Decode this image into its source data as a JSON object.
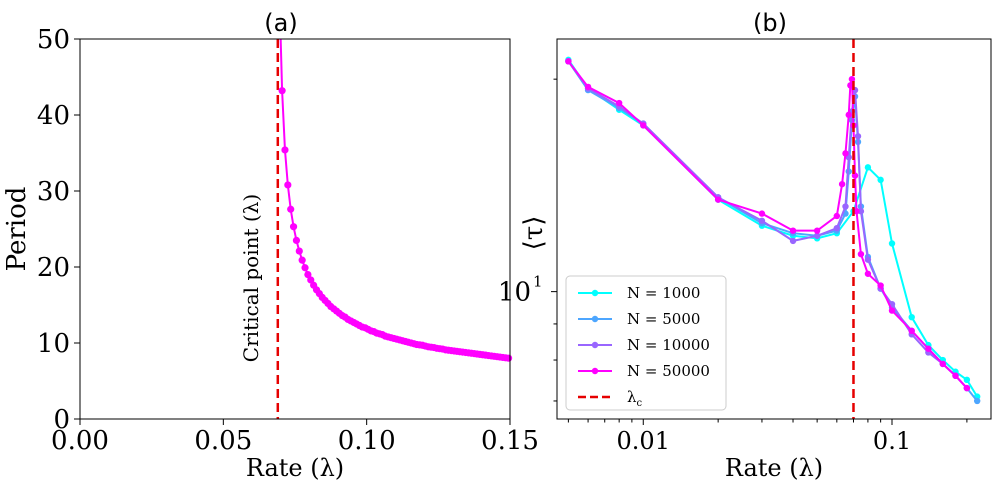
{
  "chart_data": [
    {
      "type": "scatter",
      "title": "(a)",
      "xlabel": "Rate (λ)",
      "ylabel": "Period",
      "xlim": [
        0,
        0.15
      ],
      "ylim": [
        0,
        50
      ],
      "xticks": [
        "0.00",
        "0.05",
        "0.10",
        "0.15"
      ],
      "xtick_values": [
        0,
        0.05,
        0.1,
        0.15
      ],
      "yticks": [
        "0",
        "10",
        "20",
        "30",
        "40",
        "50"
      ],
      "ytick_values": [
        0,
        10,
        20,
        30,
        40,
        50
      ],
      "grid": false,
      "critical_point": 0.069,
      "critical_label": "Critical point (λ)",
      "series": [
        {
          "color": "#ff00ff",
          "x": [
            0.0705,
            0.0715,
            0.0725,
            0.0735,
            0.0745,
            0.0755,
            0.0765,
            0.0775,
            0.0785,
            0.0795,
            0.0805,
            0.0815,
            0.0825,
            0.0835,
            0.0845,
            0.0855,
            0.0865,
            0.0875,
            0.0885,
            0.0895,
            0.0905,
            0.0915,
            0.0925,
            0.0935,
            0.0945,
            0.0955,
            0.0965,
            0.0975,
            0.0985,
            0.0995,
            0.1005,
            0.1015,
            0.1025,
            0.1035,
            0.1045,
            0.1055,
            0.1065,
            0.1075,
            0.1085,
            0.1095,
            0.1105,
            0.1115,
            0.1125,
            0.1135,
            0.1145,
            0.1155,
            0.1165,
            0.1175,
            0.1185,
            0.1195,
            0.1205,
            0.1215,
            0.1225,
            0.1235,
            0.1245,
            0.1255,
            0.1265,
            0.1275,
            0.1285,
            0.1295,
            0.1305,
            0.1315,
            0.1325,
            0.1335,
            0.1345,
            0.1355,
            0.1365,
            0.1375,
            0.1385,
            0.1395,
            0.1405,
            0.1415,
            0.1425,
            0.1435,
            0.1445,
            0.1455,
            0.1465,
            0.1475,
            0.1485,
            0.1495
          ],
          "y": [
            43.2,
            35.4,
            30.8,
            27.6,
            25.3,
            23.5,
            22.1,
            20.9,
            19.9,
            19.0,
            18.3,
            17.6,
            17.0,
            16.5,
            16.0,
            15.6,
            15.2,
            14.8,
            14.5,
            14.2,
            13.9,
            13.6,
            13.4,
            13.1,
            12.9,
            12.7,
            12.5,
            12.3,
            12.1,
            12.0,
            11.8,
            11.6,
            11.5,
            11.3,
            11.2,
            11.1,
            10.9,
            10.8,
            10.7,
            10.6,
            10.5,
            10.4,
            10.3,
            10.2,
            10.1,
            10.0,
            9.9,
            9.8,
            9.75,
            9.7,
            9.6,
            9.5,
            9.45,
            9.4,
            9.3,
            9.25,
            9.2,
            9.1,
            9.05,
            9.0,
            8.95,
            8.9,
            8.85,
            8.8,
            8.75,
            8.7,
            8.65,
            8.6,
            8.55,
            8.5,
            8.45,
            8.4,
            8.35,
            8.3,
            8.25,
            8.2,
            8.15,
            8.1,
            8.05,
            8.0
          ]
        }
      ]
    },
    {
      "type": "line",
      "title": "(b)",
      "xlabel": "Rate (λ)",
      "ylabel": "⟨τ⟩",
      "xscale": "log",
      "yscale": "log",
      "xlim": [
        0.0045,
        0.25
      ],
      "ylim": [
        6.6,
        22.8
      ],
      "xticks": [
        "0.01",
        "0.1"
      ],
      "xtick_values": [
        0.01,
        0.1
      ],
      "yticks": [
        "10"
      ],
      "ytick_exponent": "1",
      "ytick_values": [
        10
      ],
      "grid": false,
      "legend_position": "lower-left",
      "critical_point": 0.07,
      "critical_label": "λ",
      "critical_label_sub": "c",
      "series": [
        {
          "name": "N = 1000",
          "color": "#00ffff",
          "x": [
            0.005,
            0.006,
            0.008,
            0.01,
            0.02,
            0.03,
            0.04,
            0.05,
            0.06,
            0.07,
            0.08,
            0.09,
            0.1,
            0.12,
            0.14,
            0.16,
            0.18,
            0.2,
            0.22
          ],
          "y": [
            21.3,
            19.4,
            18.1,
            17.2,
            13.5,
            12.4,
            12.0,
            11.9,
            12.1,
            13.0,
            15.0,
            14.4,
            11.7,
            9.2,
            8.4,
            8.0,
            7.7,
            7.5,
            7.1
          ]
        },
        {
          "name": "N = 5000",
          "color": "#4da6ff",
          "x": [
            0.005,
            0.006,
            0.008,
            0.01,
            0.02,
            0.03,
            0.04,
            0.05,
            0.06,
            0.065,
            0.067,
            0.069,
            0.071,
            0.073,
            0.075,
            0.08,
            0.09,
            0.1,
            0.12,
            0.14,
            0.16,
            0.18,
            0.2,
            0.22
          ],
          "y": [
            21.2,
            19.3,
            18.2,
            17.3,
            13.6,
            12.5,
            12.1,
            12.0,
            12.2,
            12.9,
            14.8,
            17.5,
            18.9,
            16.3,
            13.2,
            11.2,
            10.1,
            9.5,
            8.8,
            8.3,
            7.9,
            7.6,
            7.3,
            7.0
          ]
        },
        {
          "name": "N = 10000",
          "color": "#9966ff",
          "x": [
            0.005,
            0.006,
            0.008,
            0.01,
            0.02,
            0.03,
            0.04,
            0.05,
            0.06,
            0.065,
            0.067,
            0.069,
            0.071,
            0.073,
            0.075,
            0.08,
            0.09,
            0.1,
            0.12,
            0.14,
            0.16,
            0.18,
            0.2
          ],
          "y": [
            21.2,
            19.4,
            18.3,
            17.3,
            13.6,
            12.6,
            11.8,
            12.0,
            12.3,
            13.2,
            15.5,
            18.0,
            19.3,
            16.6,
            13.0,
            11.1,
            10.1,
            9.6,
            8.7,
            8.2,
            7.9,
            7.6,
            7.3
          ]
        },
        {
          "name": "N = 50000",
          "color": "#ff00ff",
          "x": [
            0.005,
            0.006,
            0.008,
            0.01,
            0.02,
            0.03,
            0.04,
            0.05,
            0.06,
            0.063,
            0.065,
            0.067,
            0.068,
            0.069,
            0.07,
            0.071,
            0.072,
            0.075,
            0.08,
            0.09,
            0.1,
            0.12,
            0.14,
            0.16,
            0.18,
            0.2
          ],
          "y": [
            21.2,
            19.5,
            18.5,
            17.2,
            13.5,
            12.9,
            12.2,
            12.2,
            12.8,
            14.2,
            15.7,
            17.8,
            19.6,
            20.0,
            17.2,
            14.6,
            13.0,
            11.3,
            10.6,
            10.2,
            9.4,
            8.8,
            8.3,
            7.9,
            7.6,
            7.3
          ]
        }
      ]
    }
  ]
}
